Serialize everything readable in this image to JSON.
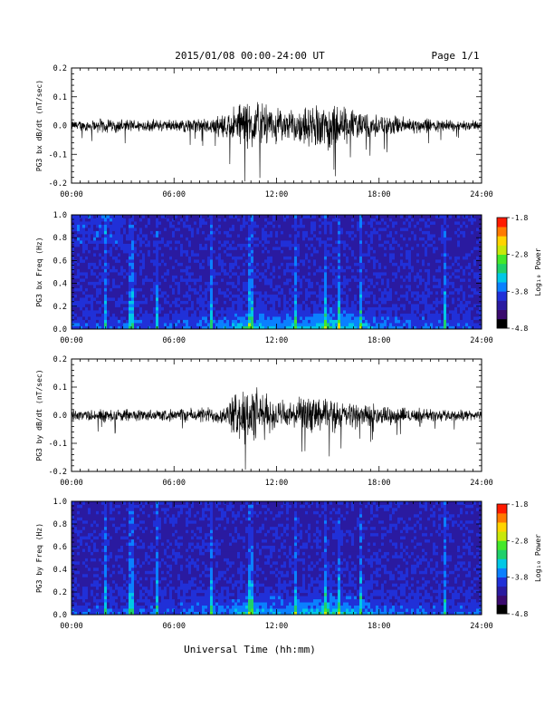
{
  "header": {
    "title": "2015/01/08  00:00-24:00 UT",
    "page": "Page 1/1"
  },
  "footer": {
    "xlabel": "Universal Time (hh:mm)"
  },
  "colorbar": {
    "ticks": [
      "-1.8",
      "-2.8",
      "-3.8",
      "-4.8"
    ],
    "label": "Log₁₀ Power",
    "colors": [
      "#000000",
      "#3a0a6e",
      "#2a1aa0",
      "#2030d8",
      "#0a80ff",
      "#00c8e6",
      "#1fd06a",
      "#44e82a",
      "#c8e80a",
      "#ffd400",
      "#ff7a00",
      "#ff1a00"
    ]
  },
  "chart_data": [
    {
      "type": "line",
      "ylabel": "PG3 bx dB/dt (nT/sec)",
      "xlim": [
        0,
        24
      ],
      "ylim": [
        -0.2,
        0.2
      ],
      "xticks": [
        "00:00",
        "06:00",
        "12:00",
        "18:00",
        "24:00"
      ],
      "yticks": [
        "0.2",
        "0.1",
        "0.0",
        "-0.1",
        "-0.2"
      ],
      "activity_hours": [
        0,
        2,
        4,
        6,
        8,
        9,
        10,
        11,
        12,
        13,
        14,
        15,
        16,
        17,
        18,
        20,
        22,
        24
      ],
      "activity_amplitude": [
        0.02,
        0.03,
        0.025,
        0.025,
        0.035,
        0.05,
        0.11,
        0.1,
        0.07,
        0.06,
        0.08,
        0.11,
        0.08,
        0.06,
        0.045,
        0.035,
        0.025,
        0.02
      ]
    },
    {
      "type": "heatmap",
      "ylabel": "PG3 bx Freq (Hz)",
      "xlim": [
        0,
        24
      ],
      "ylim": [
        0,
        1
      ],
      "xticks": [
        "00:00",
        "06:00",
        "12:00",
        "18:00",
        "24:00"
      ],
      "yticks": [
        "1.0",
        "0.8",
        "0.6",
        "0.4",
        "0.2",
        "0.0"
      ],
      "clim": [
        -4.8,
        -1.8
      ],
      "bright_hours": [
        2.0,
        3.5,
        5.0,
        8.2,
        10.5,
        13.1,
        14.9,
        15.6,
        16.9,
        21.8
      ]
    },
    {
      "type": "line",
      "ylabel": "PG3 by dB/dt (nT/sec)",
      "xlim": [
        0,
        24
      ],
      "ylim": [
        -0.2,
        0.2
      ],
      "xticks": [
        "00:00",
        "06:00",
        "12:00",
        "18:00",
        "24:00"
      ],
      "yticks": [
        "0.2",
        "0.1",
        "0.0",
        "-0.1",
        "-0.2"
      ],
      "activity_hours": [
        0,
        2,
        4,
        6,
        8,
        9,
        10,
        11,
        12,
        13,
        14,
        15,
        16,
        17,
        18,
        20,
        22,
        24
      ],
      "activity_amplitude": [
        0.02,
        0.03,
        0.025,
        0.025,
        0.035,
        0.04,
        0.13,
        0.11,
        0.06,
        0.06,
        0.08,
        0.07,
        0.06,
        0.05,
        0.04,
        0.03,
        0.025,
        0.02
      ]
    },
    {
      "type": "heatmap",
      "ylabel": "PG3 by Freq (Hz)",
      "xlim": [
        0,
        24
      ],
      "ylim": [
        0,
        1
      ],
      "xticks": [
        "00:00",
        "06:00",
        "12:00",
        "18:00",
        "24:00"
      ],
      "yticks": [
        "1.0",
        "0.8",
        "0.6",
        "0.4",
        "0.2",
        "0.0"
      ],
      "clim": [
        -4.8,
        -1.8
      ],
      "bright_hours": [
        2.0,
        3.5,
        5.0,
        8.2,
        10.5,
        13.1,
        14.9,
        15.6,
        16.9,
        21.8
      ]
    }
  ]
}
